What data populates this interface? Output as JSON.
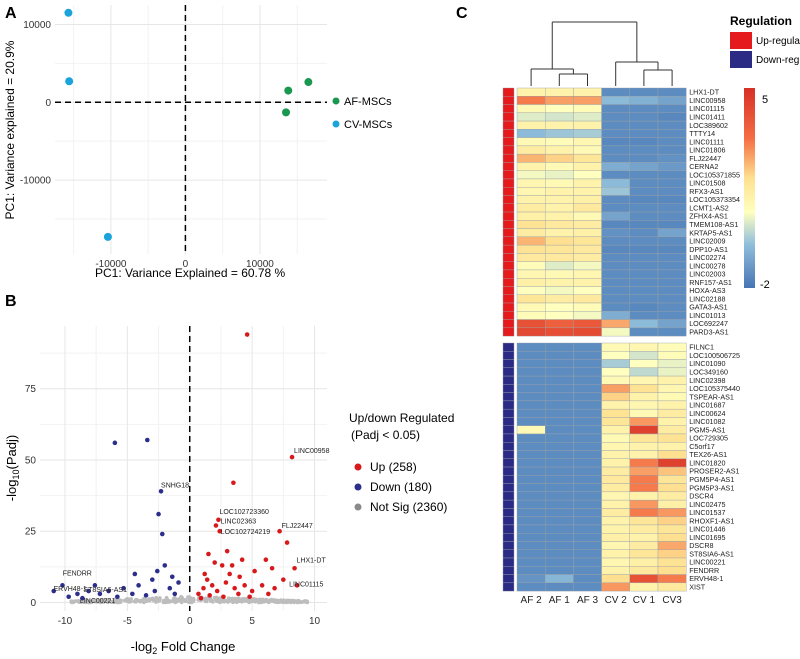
{
  "panels": {
    "a": "A",
    "b": "B",
    "c": "C"
  },
  "colors": {
    "af": "#1a9850",
    "cv": "#1ba3dc",
    "up": "#d7191c",
    "down": "#2c2e8b",
    "notsig": "#bdbdbd",
    "reg_up": "#e41a1c",
    "reg_down": "#2b2a85"
  },
  "chart_data": [
    {
      "type": "scatter",
      "id": "pca",
      "xlabel": "PC1: Variance Explained =  60.78 %",
      "ylabel": "PC1: Variance explained = 20.9%",
      "xlim": [
        -17500,
        19000
      ],
      "ylim": [
        -19500,
        12500
      ],
      "xticks": [
        -10000,
        0,
        10000
      ],
      "xtick_labels": [
        "-10000",
        "0",
        "10000"
      ],
      "yticks": [
        10000,
        0,
        -10000
      ],
      "ytick_labels": [
        "10000",
        "0",
        "-10000"
      ],
      "legend": [
        "AF-MSCs",
        "CV-MSCs"
      ],
      "series": [
        {
          "name": "AF-MSCs",
          "points": [
            [
              13800,
              1500
            ],
            [
              16500,
              2600
            ],
            [
              13500,
              -1300
            ]
          ]
        },
        {
          "name": "CV-MSCs",
          "points": [
            [
              -15700,
              11500
            ],
            [
              -15600,
              2700
            ],
            [
              -10400,
              -17300
            ]
          ]
        }
      ]
    },
    {
      "type": "scatter",
      "id": "volcano",
      "xlabel_prefix": "-log",
      "xlabel_sub": "2",
      "xlabel_suffix": " Fold Change",
      "ylabel_prefix": "-log",
      "ylabel_sub": "10",
      "ylabel_suffix": "(Padj)",
      "xlim": [
        -12,
        11
      ],
      "ylim": [
        -3,
        97
      ],
      "xticks": [
        -10,
        -5,
        0,
        5,
        10
      ],
      "xtick_labels": [
        "-10",
        "-5",
        "0",
        "5",
        "10"
      ],
      "yticks": [
        0,
        25,
        50,
        75
      ],
      "ytick_labels": [
        "0",
        "25",
        "50",
        "75"
      ],
      "legend_title": "Up/down Regulated",
      "legend_subtitle": "(Padj < 0.05)",
      "legend": [
        "Up (258)",
        "Down (180)",
        "Not Sig (2360)"
      ],
      "up_points": [
        [
          4.6,
          94
        ],
        [
          8.2,
          51
        ],
        [
          3.5,
          42
        ],
        [
          7.2,
          25
        ],
        [
          8.4,
          12
        ],
        [
          7.8,
          21
        ],
        [
          2.1,
          27
        ],
        [
          2.3,
          29
        ],
        [
          2.4,
          25
        ],
        [
          1.5,
          17
        ],
        [
          2.6,
          13
        ],
        [
          3.0,
          18
        ],
        [
          3.2,
          10
        ],
        [
          4.0,
          9
        ],
        [
          5.2,
          11
        ],
        [
          6.1,
          15
        ],
        [
          6.6,
          12
        ],
        [
          0.7,
          3
        ],
        [
          1.1,
          5
        ],
        [
          1.4,
          8
        ],
        [
          1.8,
          6
        ],
        [
          2.2,
          4
        ],
        [
          2.9,
          7
        ],
        [
          3.6,
          5
        ],
        [
          4.4,
          6
        ],
        [
          5.0,
          4
        ],
        [
          5.8,
          6
        ],
        [
          6.8,
          5
        ],
        [
          7.5,
          8
        ],
        [
          8.6,
          6
        ],
        [
          0.9,
          1.5
        ],
        [
          1.6,
          2.5
        ],
        [
          2.7,
          2
        ],
        [
          3.9,
          3
        ],
        [
          4.8,
          2
        ],
        [
          6.3,
          3
        ],
        [
          1.2,
          10
        ],
        [
          2.0,
          14
        ],
        [
          3.4,
          13
        ],
        [
          4.2,
          15
        ]
      ],
      "down_points": [
        [
          -6.0,
          56
        ],
        [
          -3.4,
          57
        ],
        [
          -2.3,
          39
        ],
        [
          -2.5,
          31
        ],
        [
          -2.2,
          24
        ],
        [
          -2.0,
          13
        ],
        [
          -4.1,
          6
        ],
        [
          -5.3,
          5
        ],
        [
          -6.5,
          4
        ],
        [
          -7.2,
          3
        ],
        [
          -8.1,
          4
        ],
        [
          -9.0,
          3
        ],
        [
          -10.2,
          6
        ],
        [
          -10.9,
          4
        ],
        [
          -9.7,
          2
        ],
        [
          -8.6,
          1.5
        ],
        [
          -1.2,
          3
        ],
        [
          -1.6,
          5
        ],
        [
          -2.8,
          4
        ],
        [
          -3.5,
          2.5
        ],
        [
          -4.6,
          3
        ],
        [
          -5.8,
          2
        ],
        [
          -0.9,
          7
        ],
        [
          -1.4,
          9
        ],
        [
          -3.0,
          8
        ],
        [
          -4.4,
          10
        ],
        [
          -7.6,
          6
        ],
        [
          -2.6,
          11
        ]
      ],
      "labels": [
        {
          "text": "LINC00958",
          "x": 8.2,
          "y": 51
        },
        {
          "text": "SNHG18",
          "x": -2.3,
          "y": 39
        },
        {
          "text": "LOC102723360",
          "x": 2.3,
          "y": 29
        },
        {
          "text": "LINC02363",
          "x": 2.4,
          "y": 27
        },
        {
          "text": "LOC102724219",
          "x": 2.4,
          "y": 25
        },
        {
          "text": "FLJ22447",
          "x": 7.2,
          "y": 25
        },
        {
          "text": "LHX1-DT",
          "x": 8.4,
          "y": 12
        },
        {
          "text": "LINC01115",
          "x": 7.8,
          "y": 7
        },
        {
          "text": "FENDRR",
          "x": -9.7,
          "y": 8
        },
        {
          "text": "ERVH48-1",
          "x": -10.6,
          "y": 4
        },
        {
          "text": "ST8SIA6-AS1",
          "x": -8.6,
          "y": 3.6
        },
        {
          "text": "LINC00221",
          "x": -8.8,
          "y": 1.2
        }
      ]
    },
    {
      "type": "heatmap",
      "id": "heatmap",
      "columns": [
        "AF 2",
        "AF 1",
        "AF 3",
        "CV 2",
        "CV 1",
        "CV3"
      ],
      "legend_title": "Regulation",
      "legend": [
        "Up-regulated",
        "Down-regulated"
      ],
      "scale_max_label": "5",
      "scale_min_label": "-2",
      "scale_range": [
        -2,
        5
      ],
      "up_rows": [
        {
          "gene": "LHX1-DT",
          "values": [
            1,
            1,
            1,
            -1.5,
            -1.5,
            -1.5
          ]
        },
        {
          "gene": "LINC00958",
          "values": [
            3,
            2.5,
            2.5,
            -0.5,
            -0.7,
            -1
          ]
        },
        {
          "gene": "LINC01115",
          "values": [
            0.8,
            0.6,
            0.7,
            -1.5,
            -1.5,
            -1.5
          ]
        },
        {
          "gene": "LINC01411",
          "values": [
            0.3,
            0.2,
            0.3,
            -1.5,
            -1.5,
            -1.6
          ]
        },
        {
          "gene": "LOC389602",
          "values": [
            1,
            1,
            1,
            -1.5,
            -1.5,
            -1.5
          ]
        },
        {
          "gene": "TTTY14",
          "values": [
            -0.5,
            -0.3,
            -0.2,
            -1.5,
            -1.5,
            -1.5
          ]
        },
        {
          "gene": "LINC01111",
          "values": [
            0.8,
            0.7,
            0.9,
            -1.6,
            -1.6,
            -1.5
          ]
        },
        {
          "gene": "LINC01806",
          "values": [
            1.2,
            1.0,
            0.8,
            -1.5,
            -1.5,
            -1.5
          ]
        },
        {
          "gene": "FLJ22447",
          "values": [
            2.2,
            1.8,
            1.4,
            -1.5,
            -1.5,
            -1.4
          ]
        },
        {
          "gene": "CERNA2",
          "values": [
            1.0,
            0.8,
            1.0,
            -0.8,
            -1.0,
            -1.2
          ]
        },
        {
          "gene": "LOC105371855",
          "values": [
            0.5,
            0.4,
            0.6,
            -1.5,
            -1.5,
            -1.5
          ]
        },
        {
          "gene": "LINC01508",
          "values": [
            0.9,
            0.8,
            1.0,
            -0.5,
            -1.5,
            -1.5
          ]
        },
        {
          "gene": "RFX3-AS1",
          "values": [
            0.9,
            1.0,
            1.0,
            -0.3,
            -1.5,
            -1.5
          ]
        },
        {
          "gene": "LOC105373354",
          "values": [
            1.0,
            1.0,
            1.1,
            -1.5,
            -1.6,
            -1.6
          ]
        },
        {
          "gene": "LCMT1-AS2",
          "values": [
            1.2,
            1.0,
            1.3,
            -1.5,
            -1.5,
            -1.5
          ]
        },
        {
          "gene": "ZFHX4-AS1",
          "values": [
            1.1,
            1.0,
            0.8,
            -1.0,
            -1.5,
            -1.5
          ]
        },
        {
          "gene": "TMEM108-AS1",
          "values": [
            1.5,
            1.3,
            1.2,
            -1.6,
            -1.6,
            -1.6
          ]
        },
        {
          "gene": "KRTAP5-AS1",
          "values": [
            1.2,
            1.0,
            1.1,
            -1.4,
            -1.5,
            -1.0
          ]
        },
        {
          "gene": "LINC02009",
          "values": [
            2.2,
            1.6,
            1.4,
            -1.5,
            -1.5,
            -1.5
          ]
        },
        {
          "gene": "DPP10-AS1",
          "values": [
            1.5,
            1.4,
            1.3,
            -1.6,
            -1.6,
            -1.6
          ]
        },
        {
          "gene": "LINC02274",
          "values": [
            1.3,
            1.3,
            1.2,
            -1.5,
            -1.5,
            -1.5
          ]
        },
        {
          "gene": "LINC00278",
          "values": [
            0.7,
            0.3,
            0.5,
            -1.5,
            -1.5,
            -1.5
          ]
        },
        {
          "gene": "LINC02003",
          "values": [
            0.9,
            0.8,
            0.9,
            -1.5,
            -1.5,
            -1.5
          ]
        },
        {
          "gene": "RNF157-AS1",
          "values": [
            1.1,
            1.0,
            1.0,
            -1.5,
            -1.5,
            -1.5
          ]
        },
        {
          "gene": "HOXA-AS3",
          "values": [
            0.6,
            0.5,
            0.6,
            -1.5,
            -1.5,
            -1.5
          ]
        },
        {
          "gene": "LINC02188",
          "values": [
            1.4,
            1.2,
            1.3,
            -1.5,
            -1.5,
            -1.5
          ]
        },
        {
          "gene": "GATA3-AS1",
          "values": [
            0.8,
            0.6,
            0.7,
            -1.5,
            -1.6,
            -1.5
          ]
        },
        {
          "gene": "LINC01013",
          "values": [
            0.7,
            0.6,
            0.5,
            -0.8,
            -1.5,
            -1.5
          ]
        },
        {
          "gene": "LOC692247",
          "values": [
            4.0,
            3.6,
            3.8,
            2.4,
            -0.5,
            -1.0
          ]
        },
        {
          "gene": "PARD3-AS1",
          "values": [
            4.3,
            4.1,
            4.2,
            0.5,
            -1.5,
            -1.5
          ]
        }
      ],
      "down_rows": [
        {
          "gene": "FILNC1",
          "values": [
            -1.5,
            -1.5,
            -1.5,
            0.8,
            0.9,
            0.7
          ]
        },
        {
          "gene": "LOC100506725",
          "values": [
            -1.5,
            -1.5,
            -1.5,
            0.6,
            0.2,
            0.7
          ]
        },
        {
          "gene": "LINC01090",
          "values": [
            -1.5,
            -1.5,
            -1.5,
            -0.2,
            0.6,
            0.4
          ]
        },
        {
          "gene": "LOC349160",
          "values": [
            -1.5,
            -1.5,
            -1.5,
            0.6,
            0.0,
            0.4
          ]
        },
        {
          "gene": "LINC02398",
          "values": [
            -1.5,
            -1.5,
            -1.5,
            0.8,
            0.9,
            1.0
          ]
        },
        {
          "gene": "LOC105375440",
          "values": [
            -1.5,
            -1.5,
            -1.5,
            2.5,
            1.5,
            0.9
          ]
        },
        {
          "gene": "TSPEAR-AS1",
          "values": [
            -1.5,
            -1.5,
            -1.5,
            1.8,
            1.0,
            0.8
          ]
        },
        {
          "gene": "LINC01687",
          "values": [
            -1.5,
            -1.5,
            -1.5,
            1.0,
            0.9,
            1.0
          ]
        },
        {
          "gene": "LINC00624",
          "values": [
            -1.5,
            -1.5,
            -1.5,
            1.5,
            0.8,
            1.2
          ]
        },
        {
          "gene": "LINC01082",
          "values": [
            -1.5,
            -1.5,
            -1.5,
            1.4,
            2.6,
            1.0
          ]
        },
        {
          "gene": "PGM5-AS1",
          "values": [
            0.8,
            -1.5,
            -1.5,
            1.0,
            4.5,
            1.2
          ]
        },
        {
          "gene": "LOC729305",
          "values": [
            -1.5,
            -1.5,
            -1.5,
            0.8,
            1.4,
            1.5
          ]
        },
        {
          "gene": "C5orf17",
          "values": [
            -1.5,
            -1.5,
            -1.5,
            0.9,
            1.0,
            1.0
          ]
        },
        {
          "gene": "TEX26-AS1",
          "values": [
            -1.5,
            -1.5,
            -1.5,
            1.0,
            1.0,
            1.6
          ]
        },
        {
          "gene": "LINC01820",
          "values": [
            -1.5,
            -1.5,
            -1.5,
            1.0,
            3.0,
            4.5
          ]
        },
        {
          "gene": "PROSER2-AS1",
          "values": [
            -1.5,
            -1.5,
            -1.5,
            1.2,
            2.5,
            2.0
          ]
        },
        {
          "gene": "PGM5P4-AS1",
          "values": [
            -1.5,
            -1.5,
            -1.5,
            1.3,
            3.0,
            1.4
          ]
        },
        {
          "gene": "PGM5P3-AS1",
          "values": [
            -1.5,
            -1.5,
            -1.5,
            1.2,
            3.0,
            1.6
          ]
        },
        {
          "gene": "DSCR4",
          "values": [
            -1.5,
            -1.5,
            -1.5,
            0.9,
            1.0,
            1.2
          ]
        },
        {
          "gene": "LINC02475",
          "values": [
            -1.5,
            -1.5,
            -1.5,
            1.0,
            2.6,
            1.1
          ]
        },
        {
          "gene": "LINC01537",
          "values": [
            -1.5,
            -1.5,
            -1.5,
            1.2,
            3.0,
            2.6
          ]
        },
        {
          "gene": "RHOXF1-AS1",
          "values": [
            -1.5,
            -1.5,
            -1.5,
            1.0,
            1.4,
            1.8
          ]
        },
        {
          "gene": "LINC01446",
          "values": [
            -1.5,
            -1.5,
            -1.5,
            1.0,
            1.2,
            1.4
          ]
        },
        {
          "gene": "LINC01695",
          "values": [
            -1.5,
            -1.5,
            -1.5,
            1.1,
            1.0,
            1.6
          ]
        },
        {
          "gene": "DSCR8",
          "values": [
            -1.5,
            -1.5,
            -1.5,
            0.9,
            1.2,
            2.4
          ]
        },
        {
          "gene": "ST8SIA6-AS1",
          "values": [
            -1.5,
            -1.5,
            -1.5,
            1.0,
            1.4,
            1.8
          ]
        },
        {
          "gene": "LINC00221",
          "values": [
            -1.5,
            -1.5,
            -1.5,
            0.9,
            1.1,
            1.5
          ]
        },
        {
          "gene": "FENDRR",
          "values": [
            -1.5,
            -1.5,
            -1.5,
            1.0,
            1.3,
            1.6
          ]
        },
        {
          "gene": "ERVH48-1",
          "values": [
            -1.3,
            -0.6,
            -1.5,
            1.6,
            4.0,
            3.0
          ]
        },
        {
          "gene": "XIST",
          "values": [
            -1.5,
            -1.5,
            -1.5,
            2.6,
            1.0,
            1.3
          ]
        }
      ]
    }
  ]
}
